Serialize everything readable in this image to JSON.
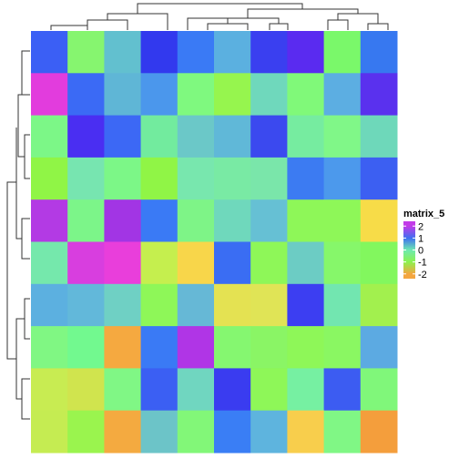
{
  "chart_data": {
    "type": "heatmap",
    "rows": 10,
    "cols": 10,
    "legend": {
      "title": "matrix_5",
      "ticks": [
        2,
        1,
        0,
        -1,
        -2
      ],
      "range": [
        -2.4,
        2.4
      ],
      "colors": [
        {
          "value": 2,
          "color": "#c23be8"
        },
        {
          "value": 1,
          "color": "#3f6ff0"
        },
        {
          "value": 0,
          "color": "#6ee9b0"
        },
        {
          "value": -1,
          "color": "#8cf24f"
        },
        {
          "value": -2,
          "color": "#f4a640"
        }
      ]
    },
    "cell_colors": [
      [
        "#3b5ff5",
        "#86f56f",
        "#62c0cf",
        "#3239ee",
        "#3a7af5",
        "#5bb0e0",
        "#3a3ff0",
        "#5a2bf0",
        "#7af86a",
        "#3778f0"
      ],
      [
        "#e23cdd",
        "#3b6af5",
        "#5fb6d6",
        "#4b97ec",
        "#7ff97f",
        "#96f54e",
        "#6fd8bc",
        "#80f979",
        "#5caee2",
        "#5a31ee"
      ],
      [
        "#7cf787",
        "#4a2ef2",
        "#3c68f5",
        "#72eb9e",
        "#6bc8c8",
        "#60b8d8",
        "#3b49ef",
        "#76eca0",
        "#80f788",
        "#6ed8ba"
      ],
      [
        "#90f546",
        "#77e5b0",
        "#7cf787",
        "#90f546",
        "#78e7ae",
        "#79eaa4",
        "#7ae6aa",
        "#3c7bf2",
        "#4c99ec",
        "#3c5ff2"
      ],
      [
        "#b33ae4",
        "#7cf589",
        "#a235e4",
        "#3a7af5",
        "#7ef487",
        "#6fd8bc",
        "#66c0d4",
        "#8ef758",
        "#8ef758",
        "#f7dc48"
      ],
      [
        "#75e8ac",
        "#d83edf",
        "#e93edb",
        "#c5ef4e",
        "#f8d64a",
        "#3a6df3",
        "#8ef758",
        "#6cccc4",
        "#86f76a",
        "#82f75e"
      ],
      [
        "#5cb0e0",
        "#62b8da",
        "#6fd0c4",
        "#8ef758",
        "#66b8d6",
        "#e4e252",
        "#e0e456",
        "#3c3ef2",
        "#72e6b0",
        "#a2f04e"
      ],
      [
        "#80f783",
        "#72f98f",
        "#f5a940",
        "#3a7af5",
        "#b035e6",
        "#85f770",
        "#8af565",
        "#8ef758",
        "#8af762",
        "#5caae2"
      ],
      [
        "#c8ec52",
        "#d0e44e",
        "#80f785",
        "#3b5ff3",
        "#70d6c0",
        "#3a3cf0",
        "#8ef758",
        "#76f0a2",
        "#3c5cf2",
        "#80f77a"
      ],
      [
        "#c5ec52",
        "#9af44e",
        "#f4aa40",
        "#6cc4c8",
        "#82f778",
        "#3a7ef5",
        "#5eb4de",
        "#f8ce4c",
        "#80f785",
        "#f49e3c"
      ]
    ]
  }
}
